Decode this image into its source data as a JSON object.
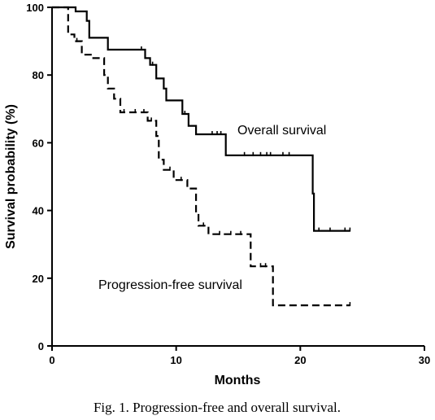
{
  "caption": "Fig. 1. Progression-free and overall survival.",
  "chart_data": {
    "type": "line",
    "subtype": "kaplan-meier step",
    "xlabel": "Months",
    "ylabel": "Survival probability (%)",
    "xlim": [
      0,
      30
    ],
    "ylim": [
      0,
      100
    ],
    "xticks": [
      0,
      10,
      20,
      30
    ],
    "yticks": [
      0,
      20,
      40,
      60,
      80,
      100
    ],
    "grid": false,
    "legend": "none (curves labeled directly)",
    "series": [
      {
        "name": "Overall survival",
        "style": "solid",
        "color": "#000000",
        "steps": [
          [
            0,
            100
          ],
          [
            1.9,
            100
          ],
          [
            1.9,
            98.8
          ],
          [
            2.8,
            98.8
          ],
          [
            2.8,
            96
          ],
          [
            3,
            96
          ],
          [
            3,
            91
          ],
          [
            4.5,
            91
          ],
          [
            4.5,
            87.5
          ],
          [
            7.5,
            87.5
          ],
          [
            7.5,
            85
          ],
          [
            7.9,
            85
          ],
          [
            7.9,
            83
          ],
          [
            8.4,
            83
          ],
          [
            8.4,
            79
          ],
          [
            9.0,
            79
          ],
          [
            9.0,
            76
          ],
          [
            9.2,
            76
          ],
          [
            9.2,
            72.5
          ],
          [
            10.5,
            72.5
          ],
          [
            10.5,
            68.5
          ],
          [
            11.0,
            68.5
          ],
          [
            11.0,
            65
          ],
          [
            11.6,
            65
          ],
          [
            11.6,
            62.5
          ],
          [
            14.0,
            62.5
          ],
          [
            14.0,
            56.3
          ],
          [
            21.0,
            56.3
          ],
          [
            21.0,
            45
          ],
          [
            21.1,
            45
          ],
          [
            21.1,
            34
          ],
          [
            24,
            34
          ]
        ],
        "censor_x": [
          7.2,
          8.1,
          10.7,
          12.9,
          13.3,
          13.6,
          15.5,
          16.2,
          16.8,
          17.3,
          17.6,
          18.6,
          19.1,
          21.5,
          22.4,
          23.6,
          24
        ],
        "label": "Overall survival"
      },
      {
        "name": "Progression-free survival",
        "style": "dashed",
        "color": "#000000",
        "steps": [
          [
            0,
            100
          ],
          [
            1.3,
            100
          ],
          [
            1.3,
            92
          ],
          [
            1.8,
            92
          ],
          [
            1.8,
            90
          ],
          [
            2.4,
            90
          ],
          [
            2.4,
            86
          ],
          [
            3.2,
            86
          ],
          [
            3.2,
            85
          ],
          [
            4.2,
            85
          ],
          [
            4.2,
            80
          ],
          [
            4.5,
            80
          ],
          [
            4.5,
            76
          ],
          [
            5.0,
            76
          ],
          [
            5.0,
            73
          ],
          [
            5.5,
            73
          ],
          [
            5.5,
            69
          ],
          [
            7.7,
            69
          ],
          [
            7.7,
            66.5
          ],
          [
            8.4,
            66.5
          ],
          [
            8.4,
            62
          ],
          [
            8.6,
            62
          ],
          [
            8.6,
            55
          ],
          [
            9.0,
            55
          ],
          [
            9.0,
            52
          ],
          [
            9.8,
            52
          ],
          [
            9.8,
            49
          ],
          [
            10.9,
            49
          ],
          [
            10.9,
            46.5
          ],
          [
            11.6,
            46.5
          ],
          [
            11.6,
            39
          ],
          [
            11.8,
            39
          ],
          [
            11.8,
            35.5
          ],
          [
            12.6,
            35.5
          ],
          [
            12.6,
            33
          ],
          [
            16.0,
            33
          ],
          [
            16.0,
            23.5
          ],
          [
            17.8,
            23.5
          ],
          [
            17.8,
            12
          ],
          [
            24,
            12
          ]
        ],
        "censor_x": [
          2.0,
          5.8,
          6.7,
          7.4,
          8.0,
          9.5,
          10.4,
          12.2,
          13.5,
          14.4,
          15.2,
          16.8,
          17.2,
          24
        ],
        "label": "Progression-free survival"
      }
    ]
  }
}
